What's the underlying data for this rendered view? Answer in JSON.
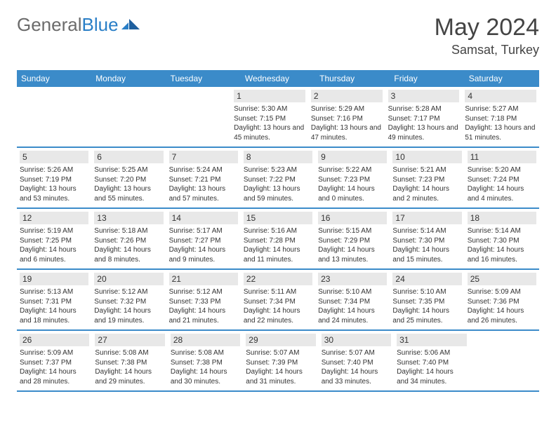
{
  "logo": {
    "text1": "General",
    "text2": "Blue"
  },
  "header": {
    "title": "May 2024",
    "location": "Samsat, Turkey"
  },
  "colors": {
    "header_bg": "#3b8bc9",
    "daynum_bg": "#e8e8e8",
    "rule": "#3b8bc9"
  },
  "dayNames": [
    "Sunday",
    "Monday",
    "Tuesday",
    "Wednesday",
    "Thursday",
    "Friday",
    "Saturday"
  ],
  "weeks": [
    [
      null,
      null,
      null,
      {
        "n": "1",
        "sr": "5:30 AM",
        "ss": "7:15 PM",
        "dl": "13 hours and 45 minutes."
      },
      {
        "n": "2",
        "sr": "5:29 AM",
        "ss": "7:16 PM",
        "dl": "13 hours and 47 minutes."
      },
      {
        "n": "3",
        "sr": "5:28 AM",
        "ss": "7:17 PM",
        "dl": "13 hours and 49 minutes."
      },
      {
        "n": "4",
        "sr": "5:27 AM",
        "ss": "7:18 PM",
        "dl": "13 hours and 51 minutes."
      }
    ],
    [
      {
        "n": "5",
        "sr": "5:26 AM",
        "ss": "7:19 PM",
        "dl": "13 hours and 53 minutes."
      },
      {
        "n": "6",
        "sr": "5:25 AM",
        "ss": "7:20 PM",
        "dl": "13 hours and 55 minutes."
      },
      {
        "n": "7",
        "sr": "5:24 AM",
        "ss": "7:21 PM",
        "dl": "13 hours and 57 minutes."
      },
      {
        "n": "8",
        "sr": "5:23 AM",
        "ss": "7:22 PM",
        "dl": "13 hours and 59 minutes."
      },
      {
        "n": "9",
        "sr": "5:22 AM",
        "ss": "7:23 PM",
        "dl": "14 hours and 0 minutes."
      },
      {
        "n": "10",
        "sr": "5:21 AM",
        "ss": "7:23 PM",
        "dl": "14 hours and 2 minutes."
      },
      {
        "n": "11",
        "sr": "5:20 AM",
        "ss": "7:24 PM",
        "dl": "14 hours and 4 minutes."
      }
    ],
    [
      {
        "n": "12",
        "sr": "5:19 AM",
        "ss": "7:25 PM",
        "dl": "14 hours and 6 minutes."
      },
      {
        "n": "13",
        "sr": "5:18 AM",
        "ss": "7:26 PM",
        "dl": "14 hours and 8 minutes."
      },
      {
        "n": "14",
        "sr": "5:17 AM",
        "ss": "7:27 PM",
        "dl": "14 hours and 9 minutes."
      },
      {
        "n": "15",
        "sr": "5:16 AM",
        "ss": "7:28 PM",
        "dl": "14 hours and 11 minutes."
      },
      {
        "n": "16",
        "sr": "5:15 AM",
        "ss": "7:29 PM",
        "dl": "14 hours and 13 minutes."
      },
      {
        "n": "17",
        "sr": "5:14 AM",
        "ss": "7:30 PM",
        "dl": "14 hours and 15 minutes."
      },
      {
        "n": "18",
        "sr": "5:14 AM",
        "ss": "7:30 PM",
        "dl": "14 hours and 16 minutes."
      }
    ],
    [
      {
        "n": "19",
        "sr": "5:13 AM",
        "ss": "7:31 PM",
        "dl": "14 hours and 18 minutes."
      },
      {
        "n": "20",
        "sr": "5:12 AM",
        "ss": "7:32 PM",
        "dl": "14 hours and 19 minutes."
      },
      {
        "n": "21",
        "sr": "5:12 AM",
        "ss": "7:33 PM",
        "dl": "14 hours and 21 minutes."
      },
      {
        "n": "22",
        "sr": "5:11 AM",
        "ss": "7:34 PM",
        "dl": "14 hours and 22 minutes."
      },
      {
        "n": "23",
        "sr": "5:10 AM",
        "ss": "7:34 PM",
        "dl": "14 hours and 24 minutes."
      },
      {
        "n": "24",
        "sr": "5:10 AM",
        "ss": "7:35 PM",
        "dl": "14 hours and 25 minutes."
      },
      {
        "n": "25",
        "sr": "5:09 AM",
        "ss": "7:36 PM",
        "dl": "14 hours and 26 minutes."
      }
    ],
    [
      {
        "n": "26",
        "sr": "5:09 AM",
        "ss": "7:37 PM",
        "dl": "14 hours and 28 minutes."
      },
      {
        "n": "27",
        "sr": "5:08 AM",
        "ss": "7:38 PM",
        "dl": "14 hours and 29 minutes."
      },
      {
        "n": "28",
        "sr": "5:08 AM",
        "ss": "7:38 PM",
        "dl": "14 hours and 30 minutes."
      },
      {
        "n": "29",
        "sr": "5:07 AM",
        "ss": "7:39 PM",
        "dl": "14 hours and 31 minutes."
      },
      {
        "n": "30",
        "sr": "5:07 AM",
        "ss": "7:40 PM",
        "dl": "14 hours and 33 minutes."
      },
      {
        "n": "31",
        "sr": "5:06 AM",
        "ss": "7:40 PM",
        "dl": "14 hours and 34 minutes."
      },
      null
    ]
  ],
  "labels": {
    "sunrise": "Sunrise:",
    "sunset": "Sunset:",
    "daylight": "Daylight:"
  }
}
